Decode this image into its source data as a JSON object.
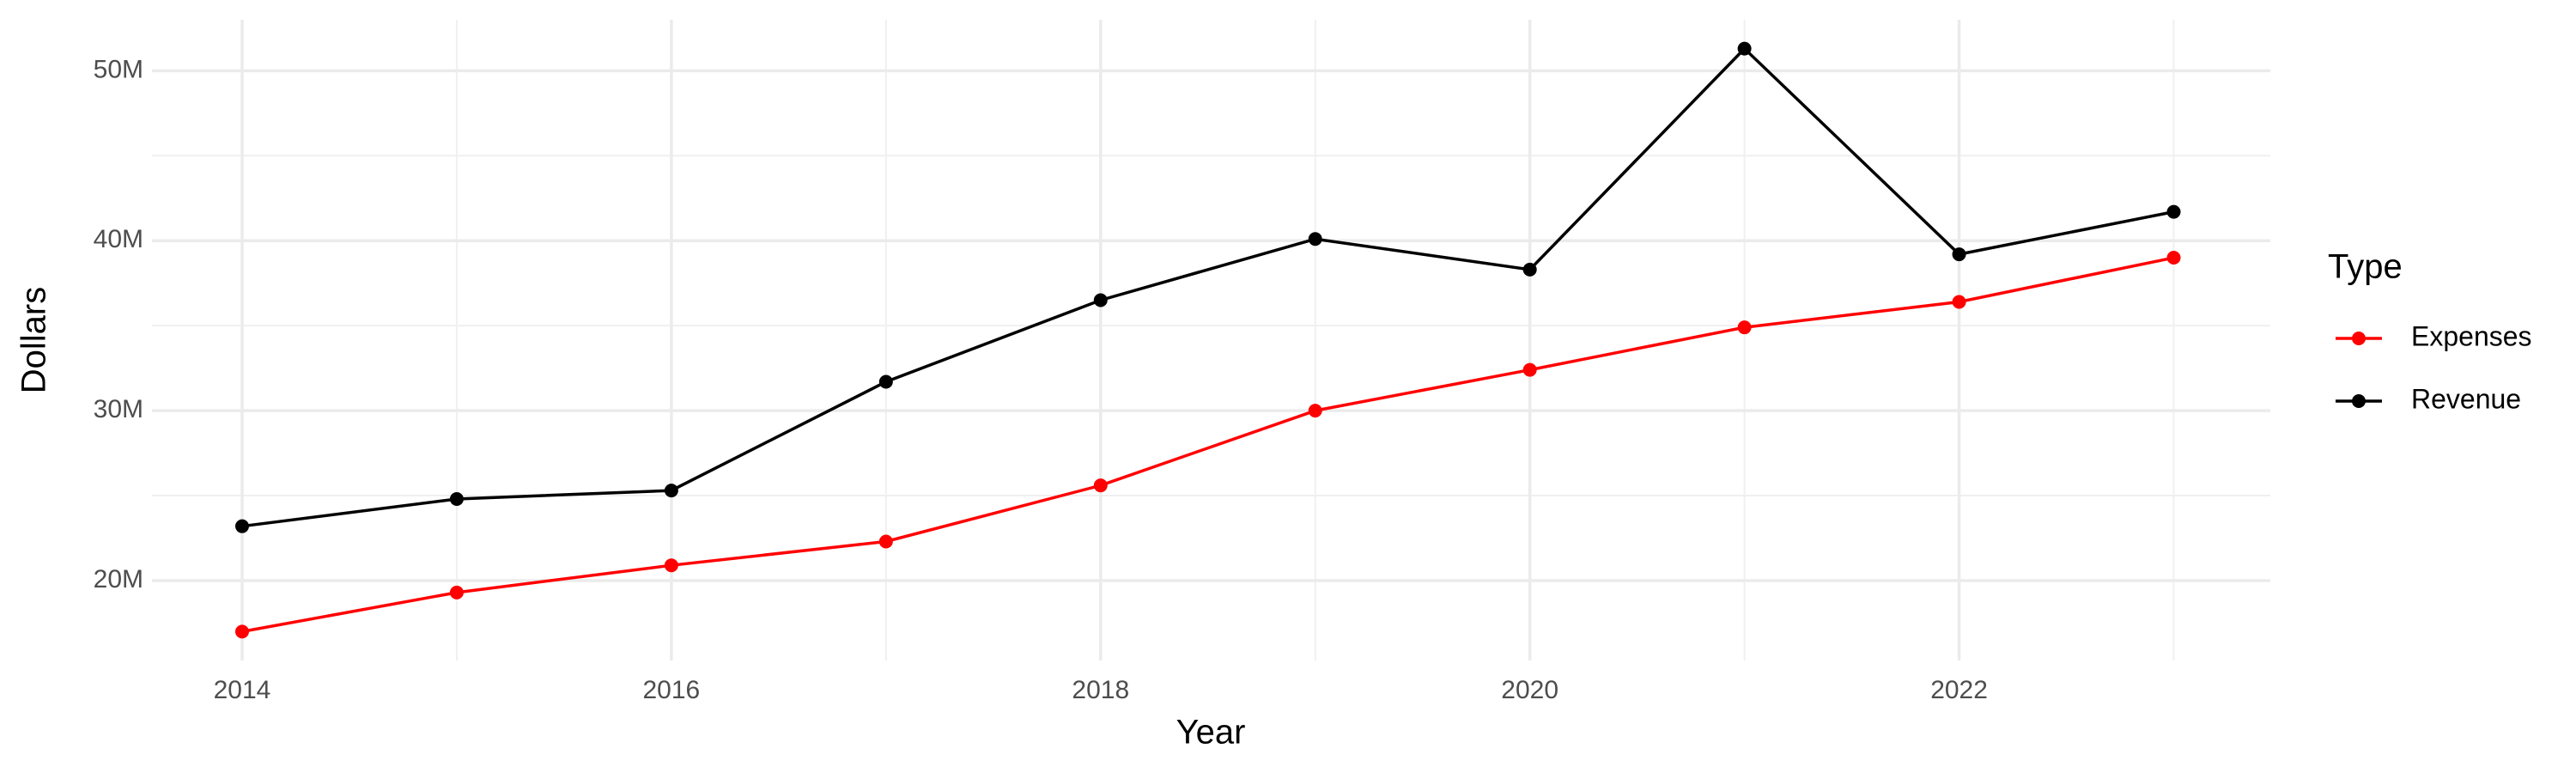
{
  "chart_data": {
    "type": "line",
    "x_label": "Year",
    "y_label": "Dollars",
    "legend_title": "Type",
    "legend": "right",
    "grid": true,
    "x": [
      2014,
      2015,
      2016,
      2017,
      2018,
      2019,
      2020,
      2021,
      2022,
      2023
    ],
    "series": [
      {
        "name": "Expenses",
        "color": "#ff0000",
        "values": [
          17000000,
          19300000,
          20900000,
          22300000,
          25600000,
          30000000,
          32400000,
          34900000,
          36400000,
          39000000
        ]
      },
      {
        "name": "Revenue",
        "color": "#000000",
        "values": [
          23200000,
          24800000,
          25300000,
          31700000,
          36500000,
          40100000,
          38300000,
          51300000,
          39200000,
          41700000
        ]
      }
    ],
    "xlim": [
      2013.58,
      2023.45
    ],
    "xticks": [
      2014,
      2016,
      2018,
      2020,
      2022
    ],
    "ylim": [
      15300000,
      53000000
    ],
    "yticks": [
      {
        "value": 20000000,
        "label": "20M"
      },
      {
        "value": 30000000,
        "label": "30M"
      },
      {
        "value": 40000000,
        "label": "40M"
      },
      {
        "value": 50000000,
        "label": "50M"
      }
    ]
  }
}
